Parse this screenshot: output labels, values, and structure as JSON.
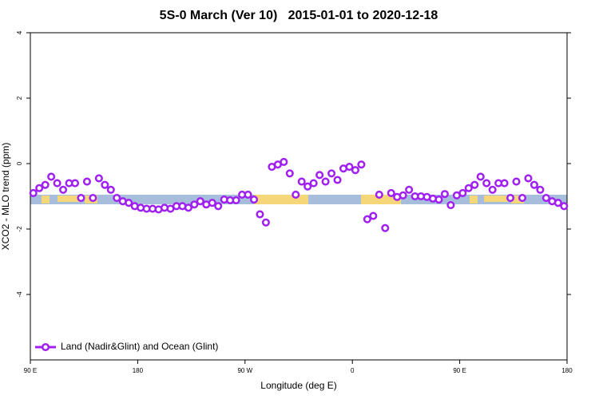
{
  "chart_data": {
    "type": "line",
    "title": "5S-0 March (Ver 10)   2015-01-01 to 2020-12-18",
    "x_label": "Longitude (deg E)",
    "y_label": "XCO2 - MLO trend (ppm)",
    "xlim": [
      90,
      540
    ],
    "ylim": [
      -6,
      4
    ],
    "xticks": [
      {
        "value": 90,
        "label": "90 E"
      },
      180,
      {
        "value": 270,
        "label": "90 W"
      },
      {
        "value": 360,
        "label": "0"
      },
      {
        "value": 450,
        "label": "90 E"
      },
      {
        "value": 540,
        "label": "180"
      }
    ],
    "yticks": [
      -4,
      -2,
      0,
      2,
      4
    ],
    "legend": "bottom-left",
    "x": [
      92.5,
      97.5,
      102.5,
      107.5,
      112.5,
      117.5,
      122.5,
      127.5,
      132.5,
      137.5,
      142.5,
      147.5,
      152.5,
      157.5,
      162.5,
      167.5,
      172.5,
      177.5,
      182.5,
      187.5,
      192.5,
      197.5,
      202.5,
      207.5,
      212.5,
      217.5,
      222.5,
      227.5,
      232.5,
      237.5,
      242.5,
      247.5,
      252.5,
      257.5,
      262.5,
      267.5,
      272.5,
      277.5,
      282.5,
      287.5,
      292.5,
      297.5,
      302.5,
      307.5,
      312.5,
      317.5,
      322.5,
      327.5,
      332.5,
      337.5,
      342.5,
      347.5,
      352.5,
      357.5,
      362.5,
      367.5,
      372.5,
      377.5,
      382.5,
      387.5,
      392.5,
      397.5,
      402.5,
      407.5,
      412.5,
      417.5,
      422.5,
      427.5,
      432.5,
      437.5,
      442.5,
      447.5,
      452.5,
      457.5,
      462.5,
      467.5,
      472.5,
      477.5,
      482.5,
      487.5,
      492.5,
      497.5,
      502.5,
      507.5,
      512.5,
      517.5,
      522.5,
      527.5,
      532.5,
      537.5
    ],
    "series": [
      {
        "name": "Land (Nadir&Glint) and Ocean (Glint)",
        "color": "#a020f0",
        "values": [
          -0.9,
          -0.75,
          -0.65,
          -0.4,
          -0.6,
          -0.8,
          -0.6,
          -0.6,
          -1.05,
          -0.55,
          -1.05,
          -0.45,
          -0.65,
          -0.8,
          -1.05,
          -1.15,
          -1.2,
          -1.3,
          -1.35,
          -1.38,
          -1.38,
          -1.4,
          -1.35,
          -1.38,
          -1.3,
          -1.3,
          -1.35,
          -1.25,
          -1.15,
          -1.25,
          -1.2,
          -1.3,
          -1.1,
          -1.12,
          -1.12,
          -0.95,
          -0.95,
          -1.1,
          -1.55,
          -1.8,
          -0.1,
          -0.03,
          0.05,
          -0.3,
          -0.95,
          -0.55,
          -0.7,
          -0.6,
          -0.35,
          -0.55,
          -0.3,
          -0.5,
          -0.15,
          -0.1,
          -0.2,
          -0.03,
          -1.7,
          -1.6,
          -0.95,
          -1.97,
          -0.9,
          -1.02,
          -0.97,
          -0.8,
          -1.0,
          -1.0,
          -1.02,
          -1.07,
          -1.1,
          -0.93,
          -1.27,
          -0.97,
          -0.9,
          -0.75,
          -0.65,
          -0.4,
          -0.6,
          -0.8,
          -0.6,
          -0.6,
          -1.05,
          -0.55,
          -1.05,
          -0.45,
          -0.65,
          -0.8,
          -1.05,
          -1.15,
          -1.2,
          -1.3
        ]
      }
    ]
  }
}
